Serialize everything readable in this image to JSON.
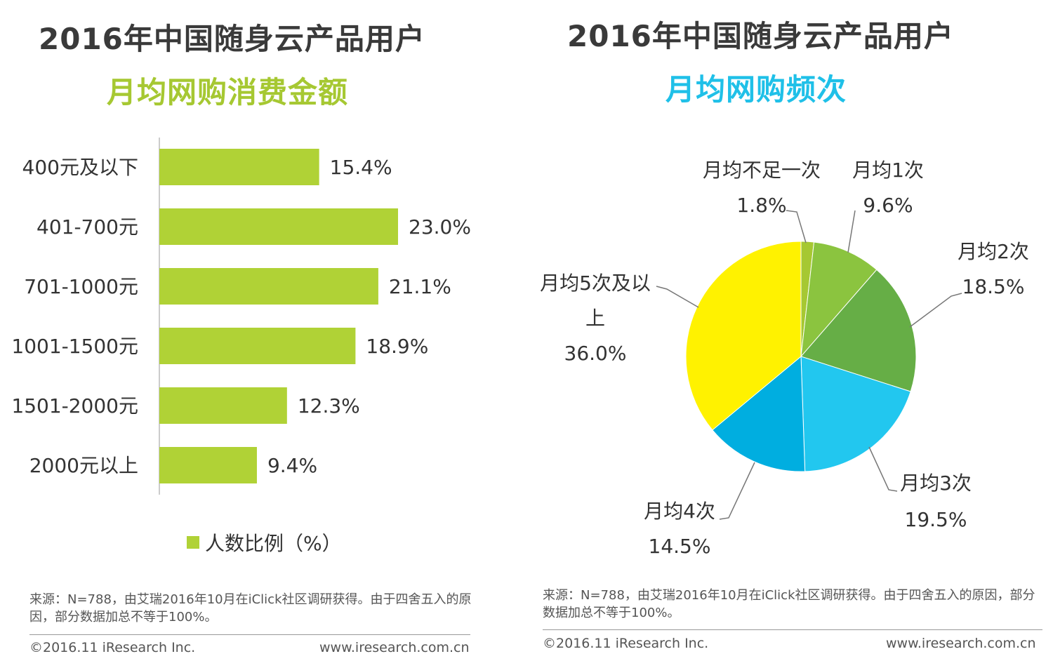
{
  "left": {
    "title": "2016年中国随身云产品用户",
    "subtitle": "月均网购消费金额",
    "legend": "人数比例（%）",
    "source": "来源：N=788，由艾瑞2016年10月在iClick社区调研获得。由于四舍五入的原因，部分数据加总不等于100%。",
    "copyright": "©2016.11 iResearch Inc.",
    "url": "www.iresearch.com.cn"
  },
  "right": {
    "title": "2016年中国随身云产品用户",
    "subtitle": "月均网购频次",
    "source": "来源：N=788，由艾瑞2016年10月在iClick社区调研获得。由于四舍五入的原因，部分数据加总不等于100%。",
    "copyright": "©2016.11 iResearch Inc.",
    "url": "www.iresearch.com.cn"
  },
  "colors": {
    "bar": "#b0d236",
    "left_subtitle": "#a6c832",
    "right_subtitle": "#1fc0e8"
  },
  "chart_data": [
    {
      "type": "bar",
      "orientation": "horizontal",
      "title": "2016年中国随身云产品用户 月均网购消费金额",
      "categories": [
        "400元及以下",
        "401-700元",
        "701-1000元",
        "1001-1500元",
        "1501-2000元",
        "2000元以上"
      ],
      "series": [
        {
          "name": "人数比例（%）",
          "values": [
            15.4,
            23.0,
            21.1,
            18.9,
            12.3,
            9.4
          ]
        }
      ],
      "labels": [
        "15.4%",
        "23.0%",
        "21.1%",
        "18.9%",
        "12.3%",
        "9.4%"
      ],
      "xlim": [
        0,
        25
      ],
      "legend": "bottom"
    },
    {
      "type": "pie",
      "title": "2016年中国随身云产品用户 月均网购频次",
      "slices": [
        {
          "label": "月均不足一次",
          "value": 1.8,
          "text": "1.8%",
          "color": "#a6c832"
        },
        {
          "label": "月均1次",
          "value": 9.6,
          "text": "9.6%",
          "color": "#8bc43f"
        },
        {
          "label": "月均2次",
          "value": 18.5,
          "text": "18.5%",
          "color": "#66ae46"
        },
        {
          "label": "月均3次",
          "value": 19.5,
          "text": "19.5%",
          "color": "#22c7ef"
        },
        {
          "label": "月均4次",
          "value": 14.5,
          "text": "14.5%",
          "color": "#00aee0"
        },
        {
          "label": "月均5次及以上",
          "value": 36.0,
          "text": "36.0%",
          "color": "#fff200"
        }
      ],
      "start_angle": "12 o'clock",
      "direction": "clockwise"
    }
  ]
}
